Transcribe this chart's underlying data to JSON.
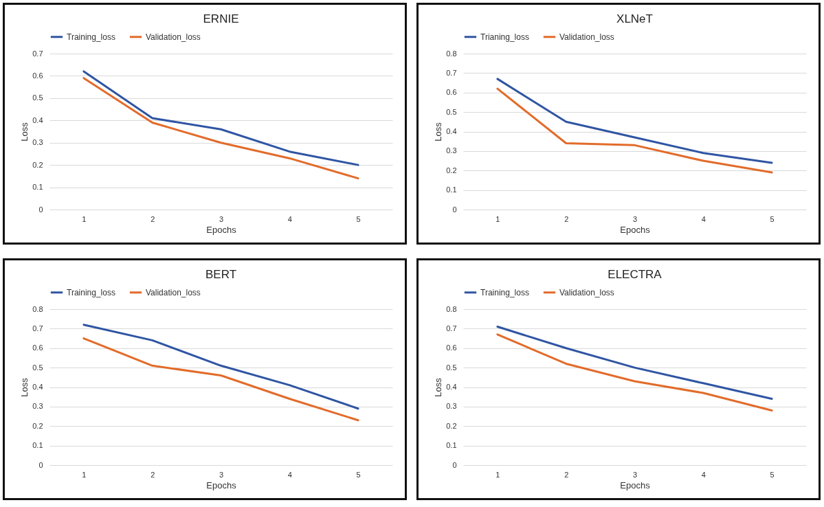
{
  "chart_data": [
    {
      "type": "line",
      "title": "ERNIE",
      "xlabel": "Epochs",
      "ylabel": "Loss",
      "categories": [
        "1",
        "2",
        "3",
        "4",
        "5"
      ],
      "ylim": [
        0,
        0.7
      ],
      "yticks": [
        0,
        0.1,
        0.2,
        0.3,
        0.4,
        0.5,
        0.6,
        0.7
      ],
      "grid": "y",
      "legend": "top",
      "line_style": "solid",
      "marker": "none",
      "series": [
        {
          "name": "Training_loss",
          "color": "#2f55a3",
          "values": [
            0.62,
            0.41,
            0.36,
            0.26,
            0.2
          ]
        },
        {
          "name": "Validation_loss",
          "color": "#e26b2a",
          "values": [
            0.59,
            0.39,
            0.3,
            0.23,
            0.14
          ]
        }
      ]
    },
    {
      "type": "line",
      "title": "XLNeT",
      "xlabel": "Epochs",
      "ylabel": "Loss",
      "categories": [
        "1",
        "2",
        "3",
        "4",
        "5"
      ],
      "ylim": [
        0,
        0.8
      ],
      "yticks": [
        0,
        0.1,
        0.2,
        0.3,
        0.4,
        0.5,
        0.6,
        0.7,
        0.8
      ],
      "grid": "y",
      "legend": "top",
      "line_style": "solid",
      "marker": "none",
      "series": [
        {
          "name": "Trianing_loss",
          "color": "#2f55a3",
          "values": [
            0.67,
            0.45,
            0.37,
            0.29,
            0.24
          ]
        },
        {
          "name": "Validation_loss",
          "color": "#e26b2a",
          "values": [
            0.62,
            0.34,
            0.33,
            0.25,
            0.19
          ]
        }
      ]
    },
    {
      "type": "line",
      "title": "BERT",
      "xlabel": "Epochs",
      "ylabel": "Loss",
      "categories": [
        "1",
        "2",
        "3",
        "4",
        "5"
      ],
      "ylim": [
        0,
        0.8
      ],
      "yticks": [
        0,
        0.1,
        0.2,
        0.3,
        0.4,
        0.5,
        0.6,
        0.7,
        0.8
      ],
      "grid": "y",
      "legend": "top",
      "line_style": "solid",
      "marker": "none",
      "series": [
        {
          "name": "Training_loss",
          "color": "#2f55a3",
          "values": [
            0.72,
            0.64,
            0.51,
            0.41,
            0.29
          ]
        },
        {
          "name": "Validation_loss",
          "color": "#e26b2a",
          "values": [
            0.65,
            0.51,
            0.46,
            0.34,
            0.23
          ]
        }
      ]
    },
    {
      "type": "line",
      "title": "ELECTRA",
      "xlabel": "Epochs",
      "ylabel": "Loss",
      "categories": [
        "1",
        "2",
        "3",
        "4",
        "5"
      ],
      "ylim": [
        0,
        0.8
      ],
      "yticks": [
        0,
        0.1,
        0.2,
        0.3,
        0.4,
        0.5,
        0.6,
        0.7,
        0.8
      ],
      "grid": "y",
      "legend": "top",
      "line_style": "solid",
      "marker": "none",
      "series": [
        {
          "name": "Training_loss",
          "color": "#2f55a3",
          "values": [
            0.71,
            0.6,
            0.5,
            0.42,
            0.34
          ]
        },
        {
          "name": "Validation_loss",
          "color": "#e26b2a",
          "values": [
            0.67,
            0.52,
            0.43,
            0.37,
            0.28
          ]
        }
      ]
    }
  ]
}
